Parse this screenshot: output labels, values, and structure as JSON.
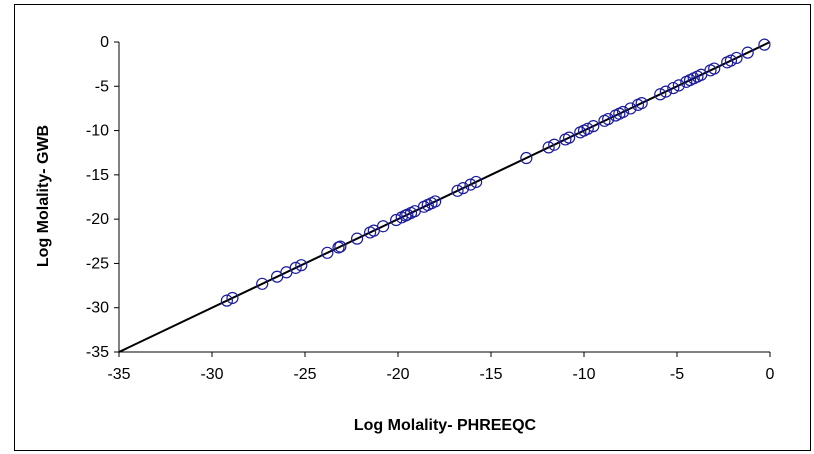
{
  "chart_data": {
    "type": "scatter",
    "title": "",
    "xlabel": "Log Molality- PHREEQC",
    "ylabel": "Log Molality- GWB",
    "xlim": [
      -35,
      0
    ],
    "ylim": [
      -35,
      0
    ],
    "x_ticks": [
      "-35",
      "-30",
      "-25",
      "-20",
      "-15",
      "-10",
      "-5",
      "0"
    ],
    "y_ticks": [
      "0",
      "-5",
      "-10",
      "-15",
      "-20",
      "-25",
      "-30",
      "-35"
    ],
    "grid": false,
    "legend": "none",
    "series": [
      {
        "marker": "open-circle",
        "color": "#1a1a9c",
        "points": [
          [
            -0.3,
            -0.3
          ],
          [
            -1.2,
            -1.2
          ],
          [
            -1.8,
            -1.8
          ],
          [
            -2.1,
            -2.1
          ],
          [
            -2.3,
            -2.3
          ],
          [
            -3.0,
            -3.0
          ],
          [
            -3.2,
            -3.2
          ],
          [
            -3.7,
            -3.7
          ],
          [
            -3.9,
            -3.9
          ],
          [
            -4.1,
            -4.1
          ],
          [
            -4.3,
            -4.3
          ],
          [
            -4.5,
            -4.5
          ],
          [
            -4.9,
            -4.9
          ],
          [
            -5.2,
            -5.2
          ],
          [
            -5.6,
            -5.6
          ],
          [
            -5.9,
            -5.9
          ],
          [
            -6.9,
            -6.9
          ],
          [
            -7.1,
            -7.1
          ],
          [
            -7.5,
            -7.5
          ],
          [
            -7.9,
            -7.9
          ],
          [
            -8.1,
            -8.1
          ],
          [
            -8.3,
            -8.3
          ],
          [
            -8.7,
            -8.7
          ],
          [
            -8.9,
            -8.9
          ],
          [
            -9.5,
            -9.5
          ],
          [
            -9.8,
            -9.8
          ],
          [
            -10.0,
            -10.0
          ],
          [
            -10.2,
            -10.2
          ],
          [
            -10.8,
            -10.8
          ],
          [
            -11.0,
            -11.0
          ],
          [
            -11.6,
            -11.6
          ],
          [
            -11.9,
            -11.9
          ],
          [
            -13.1,
            -13.1
          ],
          [
            -15.8,
            -15.8
          ],
          [
            -16.1,
            -16.1
          ],
          [
            -16.5,
            -16.5
          ],
          [
            -16.8,
            -16.8
          ],
          [
            -18.0,
            -18.0
          ],
          [
            -18.2,
            -18.2
          ],
          [
            -18.4,
            -18.4
          ],
          [
            -18.6,
            -18.6
          ],
          [
            -19.1,
            -19.1
          ],
          [
            -19.3,
            -19.3
          ],
          [
            -19.5,
            -19.5
          ],
          [
            -19.6,
            -19.6
          ],
          [
            -19.8,
            -19.8
          ],
          [
            -20.1,
            -20.1
          ],
          [
            -20.8,
            -20.8
          ],
          [
            -21.3,
            -21.3
          ],
          [
            -21.5,
            -21.5
          ],
          [
            -22.2,
            -22.2
          ],
          [
            -23.1,
            -23.1
          ],
          [
            -23.2,
            -23.2
          ],
          [
            -23.8,
            -23.8
          ],
          [
            -25.2,
            -25.2
          ],
          [
            -25.5,
            -25.5
          ],
          [
            -26.0,
            -26.0
          ],
          [
            -26.5,
            -26.5
          ],
          [
            -27.3,
            -27.3
          ],
          [
            -28.9,
            -28.9
          ],
          [
            -29.2,
            -29.2
          ]
        ]
      }
    ],
    "reference_line": {
      "from": [
        -35,
        -35
      ],
      "to": [
        0,
        0
      ],
      "color": "#000000"
    }
  }
}
